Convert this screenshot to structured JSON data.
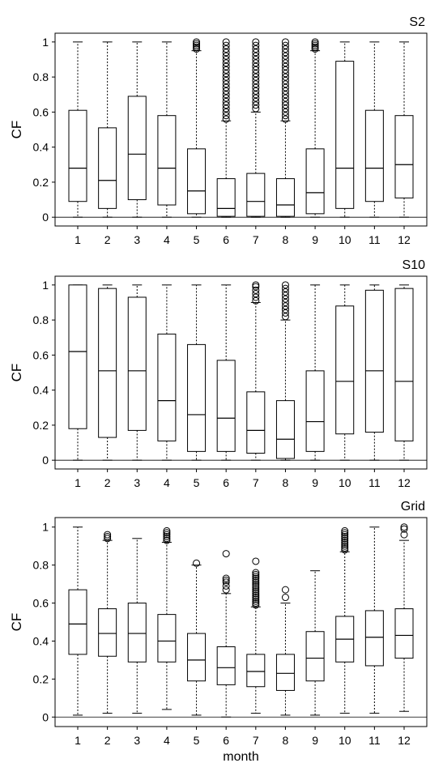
{
  "chart_data": [
    {
      "type": "box",
      "title": "S2",
      "xlabel": "",
      "ylabel": "CF",
      "ylim": [
        -0.05,
        1.05
      ],
      "categories": [
        "1",
        "2",
        "3",
        "4",
        "5",
        "6",
        "7",
        "8",
        "9",
        "10",
        "11",
        "12"
      ],
      "yticks": [
        "0",
        "0.2",
        "0.4",
        "0.6",
        "0.8",
        "1"
      ],
      "boxes": [
        {
          "min": 0,
          "q1": 0.09,
          "median": 0.28,
          "q3": 0.61,
          "max": 1,
          "outliers": []
        },
        {
          "min": 0,
          "q1": 0.05,
          "median": 0.21,
          "q3": 0.51,
          "max": 1,
          "outliers": []
        },
        {
          "min": 0,
          "q1": 0.1,
          "median": 0.36,
          "q3": 0.69,
          "max": 1,
          "outliers": []
        },
        {
          "min": 0,
          "q1": 0.07,
          "median": 0.28,
          "q3": 0.58,
          "max": 1,
          "outliers": []
        },
        {
          "min": 0,
          "q1": 0.02,
          "median": 0.15,
          "q3": 0.39,
          "max": 0.95,
          "outliers": [
            0.96,
            0.97,
            0.98,
            0.99,
            1.0
          ]
        },
        {
          "min": 0,
          "q1": 0.005,
          "median": 0.05,
          "q3": 0.22,
          "max": 0.55,
          "outliers": [
            0.56,
            0.58,
            0.6,
            0.62,
            0.64,
            0.66,
            0.68,
            0.7,
            0.72,
            0.74,
            0.76,
            0.78,
            0.8,
            0.82,
            0.84,
            0.86,
            0.88,
            0.9,
            0.92,
            0.94,
            0.96,
            0.98,
            1.0
          ]
        },
        {
          "min": 0,
          "q1": 0.005,
          "median": 0.09,
          "q3": 0.25,
          "max": 0.6,
          "outliers": [
            0.62,
            0.64,
            0.66,
            0.68,
            0.7,
            0.72,
            0.74,
            0.76,
            0.78,
            0.8,
            0.82,
            0.84,
            0.86,
            0.88,
            0.9,
            0.92,
            0.94,
            0.96,
            0.98,
            1.0
          ]
        },
        {
          "min": 0,
          "q1": 0.005,
          "median": 0.07,
          "q3": 0.22,
          "max": 0.55,
          "outliers": [
            0.56,
            0.58,
            0.6,
            0.62,
            0.64,
            0.66,
            0.68,
            0.7,
            0.72,
            0.74,
            0.76,
            0.78,
            0.8,
            0.82,
            0.84,
            0.86,
            0.88,
            0.9,
            0.92,
            0.94,
            0.96,
            0.98,
            1.0
          ]
        },
        {
          "min": 0,
          "q1": 0.02,
          "median": 0.14,
          "q3": 0.39,
          "max": 0.95,
          "outliers": [
            0.96,
            0.97,
            0.98,
            0.99,
            1.0
          ]
        },
        {
          "min": 0,
          "q1": 0.05,
          "median": 0.28,
          "q3": 0.89,
          "max": 1,
          "outliers": []
        },
        {
          "min": 0,
          "q1": 0.09,
          "median": 0.28,
          "q3": 0.61,
          "max": 1,
          "outliers": []
        },
        {
          "min": 0,
          "q1": 0.11,
          "median": 0.3,
          "q3": 0.58,
          "max": 1,
          "outliers": []
        }
      ]
    },
    {
      "type": "box",
      "title": "S10",
      "xlabel": "",
      "ylabel": "CF",
      "ylim": [
        -0.05,
        1.05
      ],
      "categories": [
        "1",
        "2",
        "3",
        "4",
        "5",
        "6",
        "7",
        "8",
        "9",
        "10",
        "11",
        "12"
      ],
      "yticks": [
        "0",
        "0.2",
        "0.4",
        "0.6",
        "0.8",
        "1"
      ],
      "boxes": [
        {
          "min": 0,
          "q1": 0.18,
          "median": 0.62,
          "q3": 1.0,
          "max": 1,
          "outliers": []
        },
        {
          "min": 0,
          "q1": 0.13,
          "median": 0.51,
          "q3": 0.98,
          "max": 1,
          "outliers": []
        },
        {
          "min": 0,
          "q1": 0.17,
          "median": 0.51,
          "q3": 0.93,
          "max": 1,
          "outliers": []
        },
        {
          "min": 0,
          "q1": 0.11,
          "median": 0.34,
          "q3": 0.72,
          "max": 1,
          "outliers": []
        },
        {
          "min": 0,
          "q1": 0.05,
          "median": 0.26,
          "q3": 0.66,
          "max": 1,
          "outliers": []
        },
        {
          "min": 0,
          "q1": 0.05,
          "median": 0.24,
          "q3": 0.57,
          "max": 1,
          "outliers": []
        },
        {
          "min": 0,
          "q1": 0.04,
          "median": 0.17,
          "q3": 0.39,
          "max": 0.9,
          "outliers": [
            0.91,
            0.93,
            0.95,
            0.97,
            0.99,
            1.0
          ]
        },
        {
          "min": 0,
          "q1": 0.01,
          "median": 0.12,
          "q3": 0.34,
          "max": 0.8,
          "outliers": [
            0.82,
            0.84,
            0.86,
            0.88,
            0.9,
            0.92,
            0.94,
            0.96,
            0.98,
            1.0
          ]
        },
        {
          "min": 0,
          "q1": 0.05,
          "median": 0.22,
          "q3": 0.51,
          "max": 1,
          "outliers": []
        },
        {
          "min": 0,
          "q1": 0.15,
          "median": 0.45,
          "q3": 0.88,
          "max": 1,
          "outliers": []
        },
        {
          "min": 0,
          "q1": 0.16,
          "median": 0.51,
          "q3": 0.97,
          "max": 1,
          "outliers": []
        },
        {
          "min": 0,
          "q1": 0.11,
          "median": 0.45,
          "q3": 0.98,
          "max": 1,
          "outliers": []
        }
      ]
    },
    {
      "type": "box",
      "title": "Grid",
      "xlabel": "month",
      "ylabel": "CF",
      "ylim": [
        -0.05,
        1.05
      ],
      "categories": [
        "1",
        "2",
        "3",
        "4",
        "5",
        "6",
        "7",
        "8",
        "9",
        "10",
        "11",
        "12"
      ],
      "yticks": [
        "0",
        "0.2",
        "0.4",
        "0.6",
        "0.8",
        "1"
      ],
      "boxes": [
        {
          "min": 0.01,
          "q1": 0.33,
          "median": 0.49,
          "q3": 0.67,
          "max": 1,
          "outliers": []
        },
        {
          "min": 0.02,
          "q1": 0.32,
          "median": 0.44,
          "q3": 0.57,
          "max": 0.93,
          "outliers": [
            0.94,
            0.95,
            0.96
          ]
        },
        {
          "min": 0.02,
          "q1": 0.29,
          "median": 0.44,
          "q3": 0.6,
          "max": 0.94,
          "outliers": []
        },
        {
          "min": 0.04,
          "q1": 0.29,
          "median": 0.4,
          "q3": 0.54,
          "max": 0.92,
          "outliers": [
            0.93,
            0.94,
            0.95,
            0.96,
            0.97,
            0.98
          ]
        },
        {
          "min": 0.01,
          "q1": 0.19,
          "median": 0.3,
          "q3": 0.44,
          "max": 0.8,
          "outliers": [
            0.81
          ]
        },
        {
          "min": 0,
          "q1": 0.17,
          "median": 0.26,
          "q3": 0.37,
          "max": 0.65,
          "outliers": [
            0.67,
            0.69,
            0.71,
            0.72,
            0.73,
            0.86
          ]
        },
        {
          "min": 0.02,
          "q1": 0.16,
          "median": 0.24,
          "q3": 0.33,
          "max": 0.58,
          "outliers": [
            0.59,
            0.6,
            0.61,
            0.62,
            0.63,
            0.64,
            0.65,
            0.66,
            0.67,
            0.68,
            0.69,
            0.7,
            0.71,
            0.72,
            0.73,
            0.74,
            0.75,
            0.76,
            0.82
          ]
        },
        {
          "min": 0.01,
          "q1": 0.14,
          "median": 0.23,
          "q3": 0.33,
          "max": 0.6,
          "outliers": [
            0.63,
            0.67
          ]
        },
        {
          "min": 0.01,
          "q1": 0.19,
          "median": 0.31,
          "q3": 0.45,
          "max": 0.77,
          "outliers": []
        },
        {
          "min": 0.02,
          "q1": 0.29,
          "median": 0.41,
          "q3": 0.53,
          "max": 0.87,
          "outliers": [
            0.88,
            0.89,
            0.9,
            0.91,
            0.92,
            0.93,
            0.94,
            0.95,
            0.96,
            0.97,
            0.98
          ]
        },
        {
          "min": 0.02,
          "q1": 0.27,
          "median": 0.42,
          "q3": 0.56,
          "max": 1,
          "outliers": []
        },
        {
          "min": 0.03,
          "q1": 0.31,
          "median": 0.43,
          "q3": 0.57,
          "max": 0.93,
          "outliers": [
            0.96,
            0.99,
            1.0
          ]
        }
      ]
    }
  ]
}
